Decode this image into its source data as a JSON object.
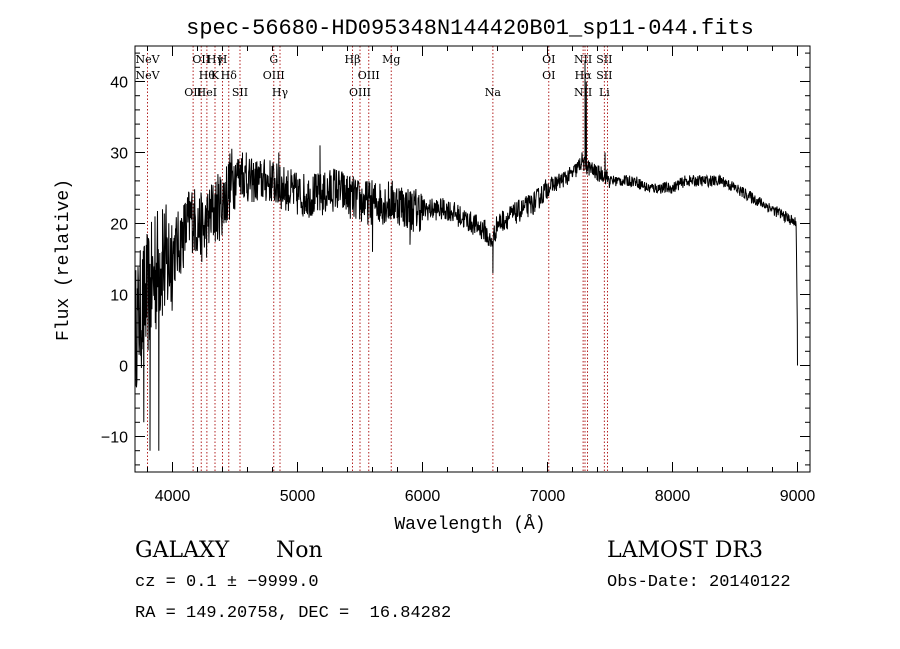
{
  "chart_data": {
    "type": "line",
    "title": "spec-56680-HD095348N144420B01_sp11-044.fits",
    "xlabel": "Wavelength (Å)",
    "ylabel": "Flux (relative)",
    "xlim": [
      3700,
      9100
    ],
    "ylim": [
      -15,
      45
    ],
    "x_ticks": [
      4000,
      5000,
      6000,
      7000,
      8000,
      9000
    ],
    "y_ticks": [
      -10,
      0,
      10,
      20,
      30,
      40
    ],
    "x_tick_labels": [
      "4000",
      "5000",
      "6000",
      "7000",
      "8000",
      "9000"
    ],
    "y_tick_labels": [
      "−10",
      "0",
      "10",
      "20",
      "30",
      "40"
    ],
    "series": [
      {
        "name": "flux",
        "anchors_x": [
          3700,
          3750,
          3800,
          3850,
          3900,
          3950,
          4000,
          4050,
          4100,
          4150,
          4200,
          4250,
          4300,
          4350,
          4400,
          4450,
          4500,
          4550,
          4600,
          4700,
          4800,
          4850,
          4900,
          5000,
          5100,
          5200,
          5300,
          5400,
          5500,
          5600,
          5700,
          5800,
          5900,
          6000,
          6100,
          6200,
          6300,
          6400,
          6500,
          6550,
          6600,
          6700,
          6800,
          6900,
          7000,
          7100,
          7200,
          7250,
          7280,
          7300,
          7320,
          7400,
          7450,
          7500,
          7600,
          7700,
          7800,
          7900,
          8000,
          8100,
          8200,
          8300,
          8400,
          8500,
          8600,
          8700,
          8800,
          8900,
          8990,
          9000
        ],
        "anchors_y": [
          5,
          8,
          10,
          12,
          15,
          14,
          16,
          17,
          19,
          21,
          20,
          19,
          21,
          22,
          23,
          25,
          27,
          27,
          26,
          26,
          26,
          25,
          25,
          24,
          24,
          24,
          25,
          24,
          23,
          23,
          23,
          23,
          22,
          22,
          22,
          22,
          21,
          20,
          19,
          17,
          20,
          21,
          22,
          23,
          25,
          26,
          27,
          28,
          29,
          28,
          28,
          27,
          27,
          26,
          26,
          26,
          25,
          25,
          25,
          26,
          26,
          26,
          26,
          25,
          24,
          23,
          22,
          21,
          20,
          2
        ],
        "spikes": [
          {
            "x": 3770,
            "y": -8
          },
          {
            "x": 3820,
            "y": -12
          },
          {
            "x": 3860,
            "y": 21
          },
          {
            "x": 3890,
            "y": -12
          },
          {
            "x": 3920,
            "y": 22
          },
          {
            "x": 4560,
            "y": 30
          },
          {
            "x": 4590,
            "y": 30
          },
          {
            "x": 4850,
            "y": 30
          },
          {
            "x": 4860,
            "y": 28
          },
          {
            "x": 5180,
            "y": 31
          },
          {
            "x": 5600,
            "y": 16
          },
          {
            "x": 5900,
            "y": 17
          },
          {
            "x": 6563,
            "y": 13
          },
          {
            "x": 7300,
            "y": 43
          },
          {
            "x": 7310,
            "y": 40
          },
          {
            "x": 7460,
            "y": 30
          },
          {
            "x": 9000,
            "y": 0
          }
        ]
      }
    ],
    "lines": [
      {
        "x": 3800,
        "labels": [
          {
            "text": "NeV",
            "row": 0
          },
          {
            "text": "NeV",
            "row": 1
          }
        ]
      },
      {
        "x": 4165,
        "labels": [
          {
            "text": "OII",
            "row": 2
          }
        ]
      },
      {
        "x": 4230,
        "labels": [
          {
            "text": "OII",
            "row": 0
          }
        ]
      },
      {
        "x": 4275,
        "labels": [
          {
            "text": "Hθ",
            "row": 1
          },
          {
            "text": "HeI",
            "row": 2
          }
        ]
      },
      {
        "x": 4340,
        "labels": [
          {
            "text": "Hγ",
            "row": 0
          },
          {
            "text": "K",
            "row": 1
          }
        ]
      },
      {
        "x": 4400,
        "labels": [
          {
            "text": "H",
            "row": 0
          }
        ]
      },
      {
        "x": 4450,
        "labels": [
          {
            "text": "Hδ",
            "row": 1
          }
        ]
      },
      {
        "x": 4540,
        "labels": [
          {
            "text": "SII",
            "row": 2
          }
        ]
      },
      {
        "x": 4810,
        "labels": [
          {
            "text": "G",
            "row": 0
          },
          {
            "text": "OIII",
            "row": 1
          }
        ]
      },
      {
        "x": 4860,
        "labels": [
          {
            "text": "Hγ",
            "row": 2
          }
        ]
      },
      {
        "x": 5440,
        "labels": [
          {
            "text": "Hβ",
            "row": 0
          }
        ]
      },
      {
        "x": 5500,
        "labels": [
          {
            "text": "OIII",
            "row": 2
          }
        ]
      },
      {
        "x": 5570,
        "labels": [
          {
            "text": "OIII",
            "row": 1
          }
        ]
      },
      {
        "x": 5750,
        "labels": [
          {
            "text": "Mg",
            "row": 0
          }
        ]
      },
      {
        "x": 6563,
        "labels": [
          {
            "text": "Na",
            "row": 2
          }
        ]
      },
      {
        "x": 7010,
        "labels": [
          {
            "text": "OI",
            "row": 0
          },
          {
            "text": "OI",
            "row": 1
          }
        ]
      },
      {
        "x": 7285,
        "labels": [
          {
            "text": "NII",
            "row": 0
          },
          {
            "text": "Hα",
            "row": 1
          },
          {
            "text": "NII",
            "row": 2
          }
        ]
      },
      {
        "x": 7300,
        "labels": []
      },
      {
        "x": 7320,
        "labels": []
      },
      {
        "x": 7455,
        "labels": [
          {
            "text": "SII",
            "row": 0
          },
          {
            "text": "SII",
            "row": 1
          },
          {
            "text": "Li",
            "row": 2
          }
        ]
      },
      {
        "x": 7480,
        "labels": []
      }
    ]
  },
  "footer": {
    "class_label": "GALAXY",
    "subclass_label": "Non",
    "redshift_text": "cz = 0.1 ± −9999.0",
    "coords_text": "RA = 149.20758, DEC =  16.84282",
    "survey": "LAMOST DR3",
    "obs_date": "Obs-Date: 20140122"
  },
  "colors": {
    "spectrum": "#000000",
    "line_marker": "#b22222",
    "axes": "#000000"
  }
}
